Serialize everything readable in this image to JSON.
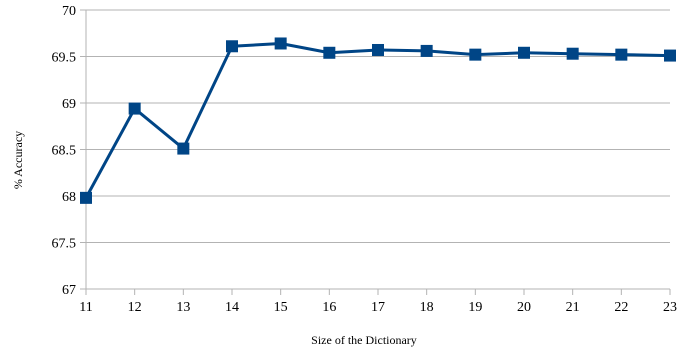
{
  "chart_data": {
    "type": "line",
    "title": "",
    "xlabel": "Size of the Dictionary",
    "ylabel": "% Accuracy",
    "x": [
      11,
      12,
      13,
      14,
      15,
      16,
      17,
      18,
      19,
      20,
      21,
      22,
      23
    ],
    "x_tick_labels": [
      "11",
      "12",
      "13",
      "14",
      "15",
      "16",
      "17",
      "18",
      "19",
      "20",
      "21",
      "22",
      "23"
    ],
    "y_tick_labels": [
      "67",
      "67.5",
      "68",
      "68.5",
      "69",
      "69.5",
      "70"
    ],
    "y_ticks": [
      67,
      67.5,
      68,
      68.5,
      69,
      69.5,
      70
    ],
    "xlim": [
      11,
      23
    ],
    "ylim": [
      67,
      70
    ],
    "grid": "horizontal",
    "legend": "none",
    "series": [
      {
        "values": [
          67.98,
          68.94,
          68.51,
          69.61,
          69.64,
          69.54,
          69.57,
          69.56,
          69.52,
          69.54,
          69.53,
          69.52,
          69.51
        ],
        "color": "#004586",
        "marker": "square"
      }
    ]
  }
}
